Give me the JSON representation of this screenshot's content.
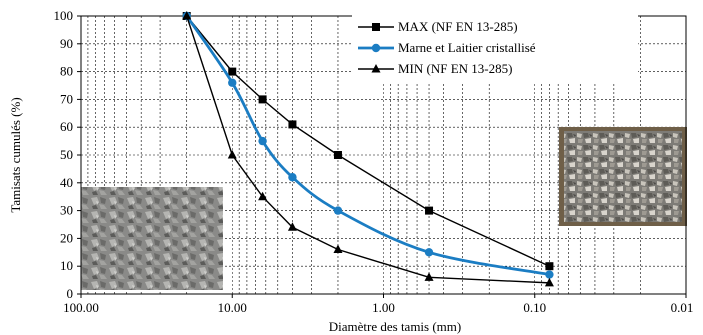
{
  "chart_data": {
    "type": "line",
    "x_scale": "log",
    "x_reversed": true,
    "xlabel": "Diamètre des tamis (mm)",
    "ylabel": "Tamisats cumulés (%)",
    "xlim": [
      100,
      0.01
    ],
    "ylim": [
      0,
      100
    ],
    "x_ticks": [
      "100.00",
      "10.00",
      "1.00",
      "0.10",
      "0.01"
    ],
    "y_ticks": [
      "0",
      "10",
      "20",
      "30",
      "40",
      "50",
      "60",
      "70",
      "80",
      "90",
      "100"
    ],
    "grid": true,
    "legend_position": "top-center",
    "series": [
      {
        "name": "MAX (NF EN 13-285)",
        "marker": "square",
        "color": "#000000",
        "x": [
          20,
          10,
          6.3,
          4,
          2,
          0.5,
          0.08
        ],
        "y": [
          100,
          80,
          70,
          61,
          50,
          30,
          10
        ]
      },
      {
        "name": "Marne et Laitier cristallisé",
        "marker": "circle",
        "color": "#1b7dc3",
        "x": [
          20,
          10,
          6.3,
          4,
          2,
          0.5,
          0.08
        ],
        "y": [
          100,
          76,
          55,
          42,
          30,
          15,
          7
        ]
      },
      {
        "name": "MIN (NF EN 13-285)",
        "marker": "triangle",
        "color": "#000000",
        "x": [
          20,
          10,
          6.3,
          4,
          2,
          0.5,
          0.08
        ],
        "y": [
          100,
          50,
          35,
          24,
          16,
          6,
          4
        ]
      }
    ]
  }
}
